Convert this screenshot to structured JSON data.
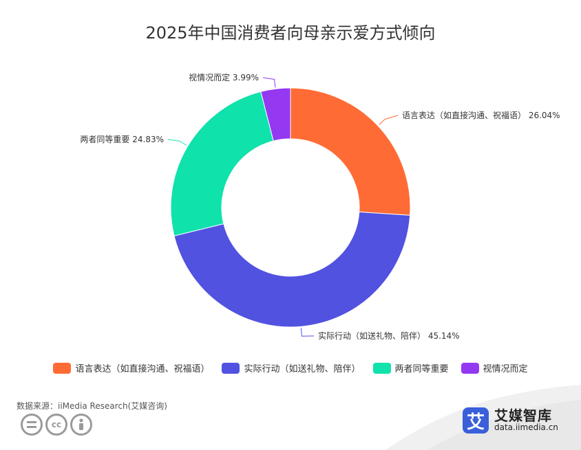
{
  "chart_data": {
    "type": "pie",
    "title": "2025年中国消费者向母亲示爱方式倾向",
    "donut": true,
    "legend_placement": "bottom",
    "slices": [
      {
        "name": "语言表达（如直接沟通、祝福语）",
        "value": 26.04,
        "label": "语言表达（如直接沟通、祝福语） 26.04%",
        "color": "#FF6B35"
      },
      {
        "name": "实际行动（如送礼物、陪伴）",
        "value": 45.14,
        "label": "实际行动（如送礼物、陪伴） 45.14%",
        "color": "#5152E0"
      },
      {
        "name": "两者同等重要",
        "value": 24.83,
        "label": "两者同等重要 24.83%",
        "color": "#10E2AC"
      },
      {
        "name": "视情况而定",
        "value": 3.99,
        "label": "视情况而定 3.99%",
        "color": "#9438F2"
      }
    ]
  },
  "footer": {
    "source": "数据来源：iiMedia Research(艾媒咨询)",
    "brand_logo_char": "艾",
    "brand_name": "艾媒智库",
    "brand_url": "data.iimedia.cn",
    "cc_icons": [
      "equals-icon",
      "cc-icon",
      "person-icon"
    ]
  }
}
